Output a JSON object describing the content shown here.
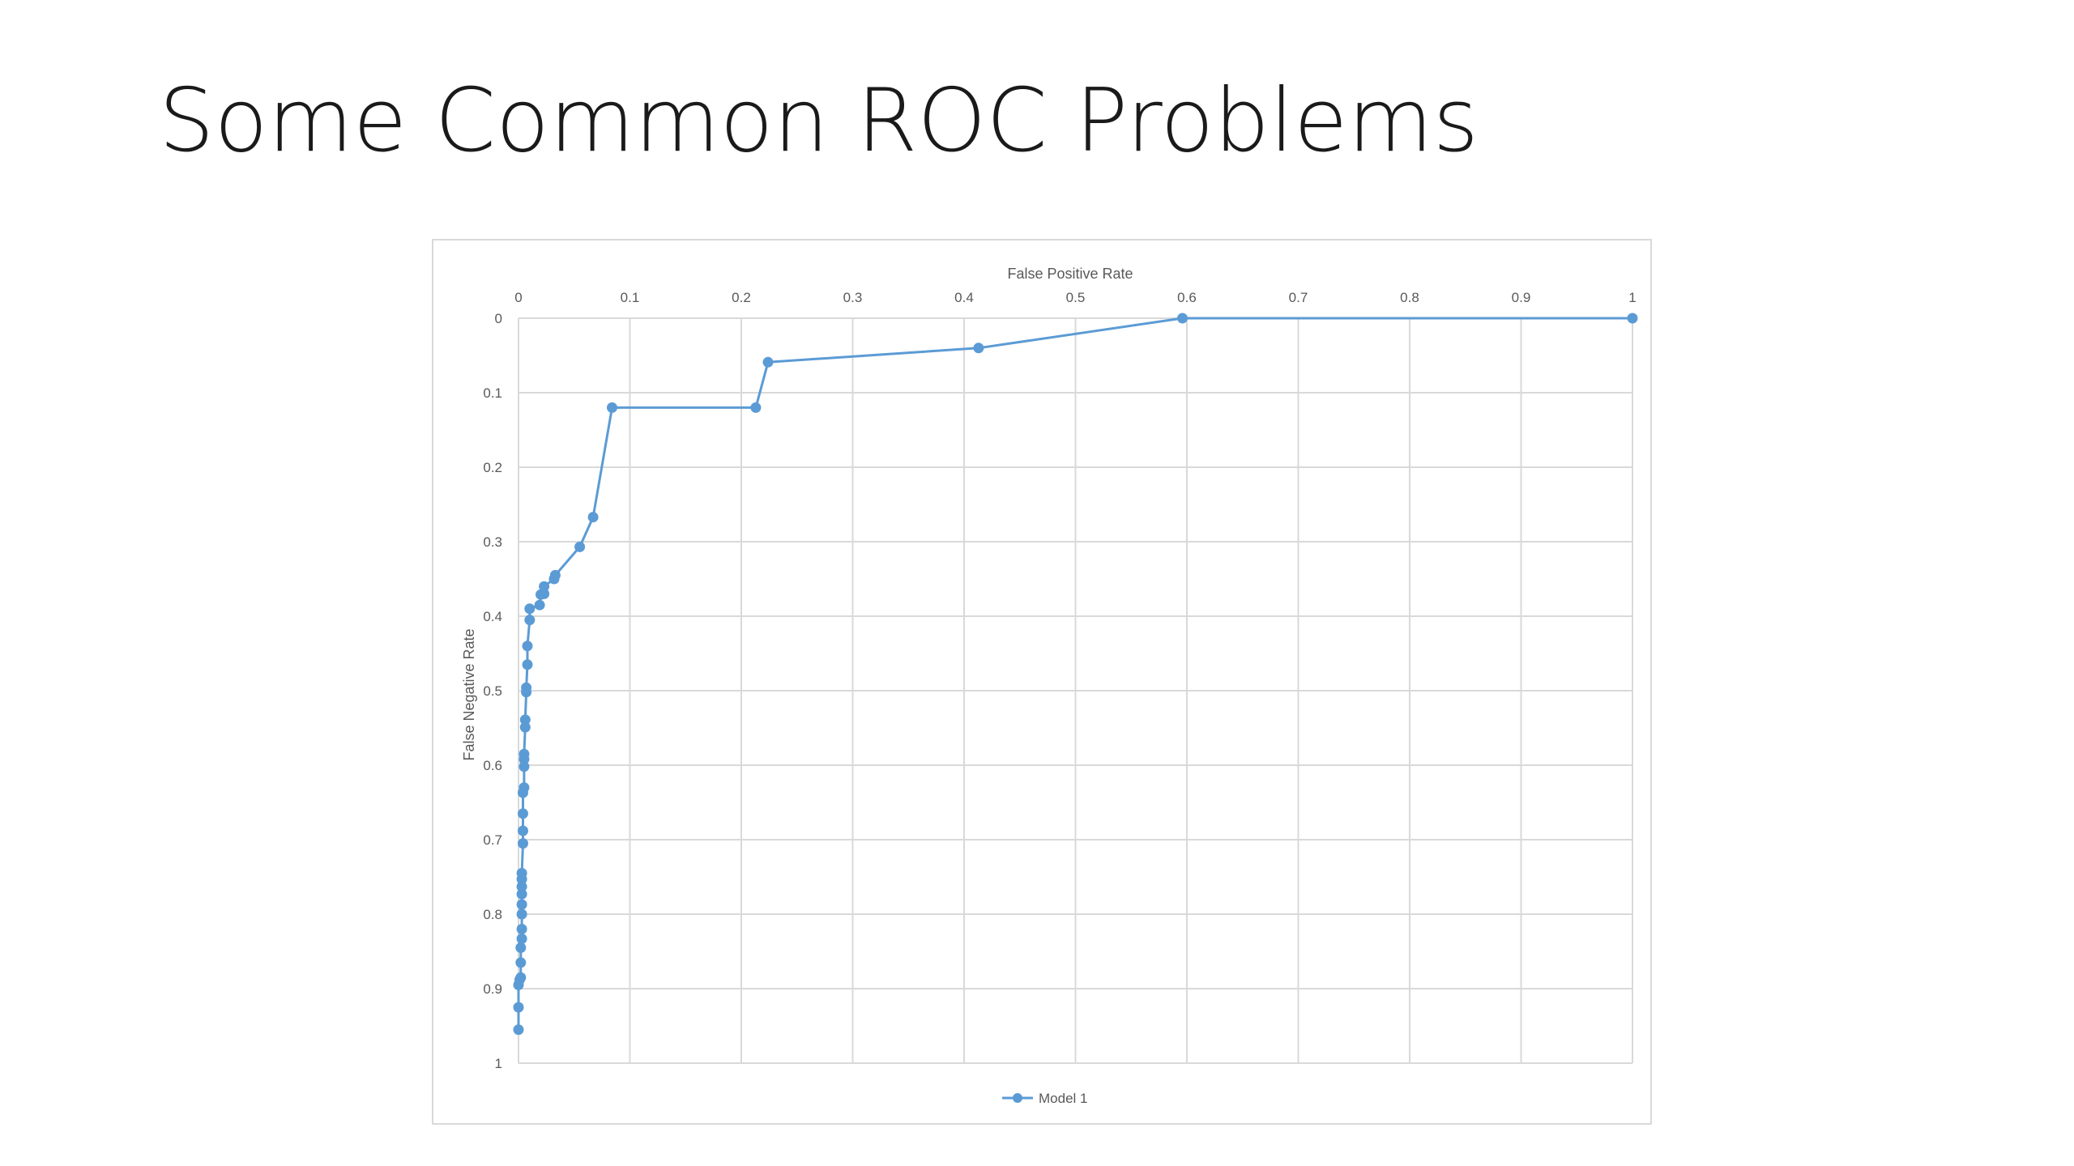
{
  "slide": {
    "title": "Some Common ROC Problems"
  },
  "chart_data": {
    "type": "line",
    "xlabel": "False Positive Rate",
    "ylabel": "False Negative Rate",
    "xlim": [
      0,
      1
    ],
    "ylim": [
      0,
      1
    ],
    "y_inverted": true,
    "x_axis_position": "top",
    "grid": true,
    "legend_position": "bottom",
    "line_color": "#5b9bd5",
    "grid_color": "#d9d9d9",
    "x_ticks": [
      "0",
      "0.1",
      "0.2",
      "0.3",
      "0.4",
      "0.5",
      "0.6",
      "0.7",
      "0.8",
      "0.9",
      "1"
    ],
    "y_ticks": [
      "0",
      "0.1",
      "0.2",
      "0.3",
      "0.4",
      "0.5",
      "0.6",
      "0.7",
      "0.8",
      "0.9",
      "1"
    ],
    "series": [
      {
        "name": "Model 1",
        "x": [
          0.0,
          0.0,
          0.0,
          0.001,
          0.002,
          0.002,
          0.002,
          0.003,
          0.003,
          0.003,
          0.003,
          0.003,
          0.003,
          0.003,
          0.003,
          0.004,
          0.004,
          0.004,
          0.004,
          0.005,
          0.005,
          0.005,
          0.005,
          0.006,
          0.006,
          0.007,
          0.007,
          0.008,
          0.008,
          0.01,
          0.01,
          0.019,
          0.02,
          0.023,
          0.023,
          0.032,
          0.033,
          0.055,
          0.067,
          0.084,
          0.213,
          0.224,
          0.413,
          0.596,
          1.0
        ],
        "y": [
          0.955,
          0.925,
          0.895,
          0.888,
          0.885,
          0.865,
          0.845,
          0.833,
          0.82,
          0.8,
          0.787,
          0.773,
          0.763,
          0.753,
          0.745,
          0.705,
          0.688,
          0.665,
          0.637,
          0.63,
          0.602,
          0.592,
          0.585,
          0.549,
          0.539,
          0.502,
          0.496,
          0.465,
          0.44,
          0.405,
          0.39,
          0.385,
          0.371,
          0.37,
          0.36,
          0.35,
          0.345,
          0.307,
          0.267,
          0.12,
          0.12,
          0.059,
          0.04,
          0.0,
          0.0
        ]
      }
    ]
  }
}
